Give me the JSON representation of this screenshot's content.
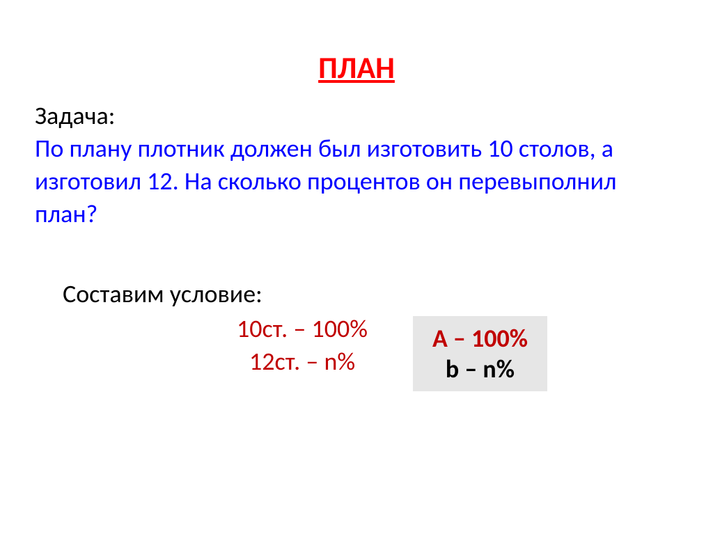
{
  "title": "ПЛАН",
  "task_label": "Задача:",
  "task_text": " По плану плотник должен был изготовить 10 столов, а изготовил 12. На сколько процентов он перевыполнил план?",
  "condition_label": "Составим условие:",
  "condition": {
    "line1": "10ст. – 100%",
    "line2": "12ст. – n%"
  },
  "formula": {
    "line1": "А – 100%",
    "line2": "b – n%"
  },
  "colors": {
    "title": "#ff0000",
    "task_label": "#000000",
    "task_text": "#0000ff",
    "condition_label": "#000000",
    "condition_values": "#c00000",
    "formula_line1": "#c00000",
    "formula_line2": "#000000",
    "formula_bg": "#e6e6e6",
    "background": "#ffffff"
  },
  "typography": {
    "title_fontsize": 44,
    "body_fontsize": 36,
    "formula_fontsize": 36,
    "font_family": "Calibri"
  }
}
